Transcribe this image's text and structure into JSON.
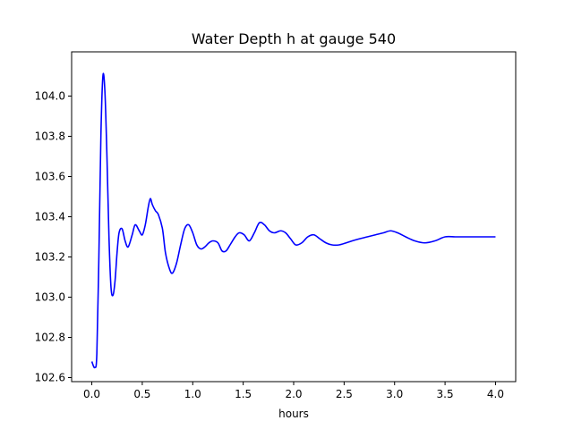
{
  "chart_data": {
    "type": "line",
    "title": "Water Depth h at gauge 540",
    "xlabel": "hours",
    "ylabel": "",
    "xlim": [
      -0.2,
      4.2
    ],
    "ylim": [
      102.58,
      104.22
    ],
    "xticks": [
      0.0,
      0.5,
      1.0,
      1.5,
      2.0,
      2.5,
      3.0,
      3.5,
      4.0
    ],
    "xtick_labels": [
      "0.0",
      "0.5",
      "1.0",
      "1.5",
      "2.0",
      "2.5",
      "3.0",
      "3.5",
      "4.0"
    ],
    "yticks": [
      102.6,
      102.8,
      103.0,
      103.2,
      103.4,
      103.6,
      103.8,
      104.0
    ],
    "ytick_labels": [
      "102.6",
      "102.8",
      "103.0",
      "103.2",
      "103.4",
      "103.6",
      "103.8",
      "104.0"
    ],
    "grid": false,
    "series": [
      {
        "color": "#0000ff",
        "x": [
          0.0,
          0.03,
          0.05,
          0.07,
          0.09,
          0.11,
          0.13,
          0.15,
          0.17,
          0.19,
          0.21,
          0.23,
          0.25,
          0.27,
          0.3,
          0.33,
          0.36,
          0.4,
          0.43,
          0.47,
          0.5,
          0.53,
          0.56,
          0.58,
          0.6,
          0.63,
          0.66,
          0.7,
          0.73,
          0.77,
          0.8,
          0.84,
          0.88,
          0.92,
          0.96,
          1.0,
          1.04,
          1.08,
          1.12,
          1.16,
          1.2,
          1.25,
          1.29,
          1.33,
          1.37,
          1.42,
          1.46,
          1.51,
          1.56,
          1.61,
          1.66,
          1.71,
          1.76,
          1.81,
          1.87,
          1.92,
          1.97,
          2.02,
          2.08,
          2.14,
          2.2,
          2.26,
          2.32,
          2.38,
          2.45,
          2.52,
          2.58,
          2.65,
          2.73,
          2.81,
          2.89,
          2.96,
          3.03,
          3.11,
          3.2,
          3.3,
          3.4,
          3.5,
          3.6,
          3.7,
          3.8,
          3.9,
          4.0
        ],
        "y": [
          102.68,
          102.65,
          102.72,
          103.2,
          103.8,
          104.1,
          104.02,
          103.7,
          103.3,
          103.05,
          103.01,
          103.08,
          103.22,
          103.32,
          103.34,
          103.28,
          103.25,
          103.31,
          103.36,
          103.33,
          103.31,
          103.36,
          103.45,
          103.49,
          103.46,
          103.43,
          103.41,
          103.34,
          103.22,
          103.14,
          103.12,
          103.17,
          103.26,
          103.34,
          103.36,
          103.32,
          103.26,
          103.24,
          103.25,
          103.27,
          103.28,
          103.27,
          103.23,
          103.23,
          103.26,
          103.3,
          103.32,
          103.31,
          103.28,
          103.32,
          103.37,
          103.36,
          103.33,
          103.32,
          103.33,
          103.32,
          103.29,
          103.26,
          103.27,
          103.3,
          103.31,
          103.29,
          103.27,
          103.26,
          103.26,
          103.27,
          103.28,
          103.29,
          103.3,
          103.31,
          103.32,
          103.33,
          103.32,
          103.3,
          103.28,
          103.27,
          103.28,
          103.3,
          103.3,
          103.3,
          103.3,
          103.3,
          103.3
        ]
      }
    ]
  }
}
